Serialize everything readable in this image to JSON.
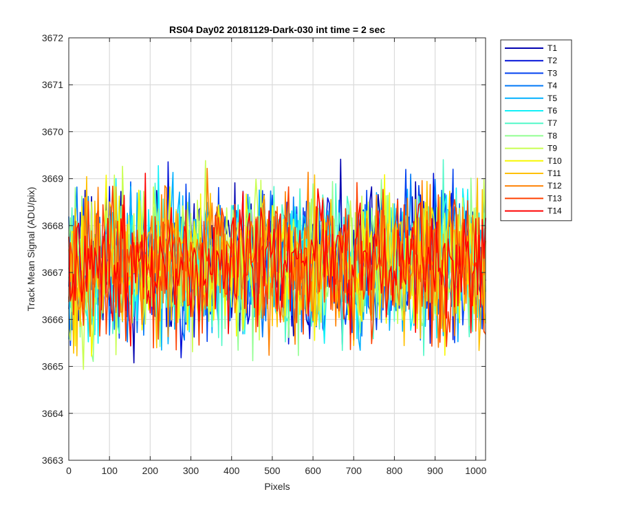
{
  "chart_data": {
    "type": "line",
    "title": "RS04 Day02 20181129-Dark-030 int time = 2 sec",
    "xlabel": "Pixels",
    "ylabel": "Track Mean Signal (ADU/pix)",
    "xlim": [
      0,
      1024
    ],
    "ylim": [
      3663,
      3672
    ],
    "xticks": [
      0,
      100,
      200,
      300,
      400,
      500,
      600,
      700,
      800,
      900,
      1000
    ],
    "yticks": [
      3663,
      3664,
      3665,
      3666,
      3667,
      3668,
      3669,
      3670,
      3671,
      3672
    ],
    "grid": true,
    "legend_position": "outside-top-right",
    "x_step": 4,
    "series": [
      {
        "name": "T1",
        "color": "#0000b0",
        "mean": 3667.2,
        "spread": 1.0,
        "seed": 11
      },
      {
        "name": "T2",
        "color": "#0010d8",
        "mean": 3667.2,
        "spread": 1.0,
        "seed": 23
      },
      {
        "name": "T3",
        "color": "#0040f0",
        "mean": 3667.2,
        "spread": 1.0,
        "seed": 37
      },
      {
        "name": "T4",
        "color": "#0078f8",
        "mean": 3667.2,
        "spread": 1.0,
        "seed": 41
      },
      {
        "name": "T5",
        "color": "#00b0ff",
        "mean": 3667.2,
        "spread": 1.0,
        "seed": 53
      },
      {
        "name": "T6",
        "color": "#10f0f8",
        "mean": 3667.2,
        "spread": 1.0,
        "seed": 67
      },
      {
        "name": "T7",
        "color": "#50f8c8",
        "mean": 3667.2,
        "spread": 1.0,
        "seed": 71
      },
      {
        "name": "T8",
        "color": "#90ff90",
        "mean": 3667.2,
        "spread": 1.0,
        "seed": 83
      },
      {
        "name": "T9",
        "color": "#c8ff50",
        "mean": 3667.2,
        "spread": 1.0,
        "seed": 97
      },
      {
        "name": "T10",
        "color": "#f8f800",
        "mean": 3667.2,
        "spread": 1.0,
        "seed": 101
      },
      {
        "name": "T11",
        "color": "#ffc000",
        "mean": 3667.2,
        "spread": 1.0,
        "seed": 113
      },
      {
        "name": "T12",
        "color": "#ff8000",
        "mean": 3667.2,
        "spread": 1.0,
        "seed": 127
      },
      {
        "name": "T13",
        "color": "#ff4000",
        "mean": 3667.2,
        "spread": 1.0,
        "seed": 131
      },
      {
        "name": "T14",
        "color": "#ff0000",
        "mean": 3667.2,
        "spread": 0.85,
        "seed": 149
      }
    ]
  }
}
